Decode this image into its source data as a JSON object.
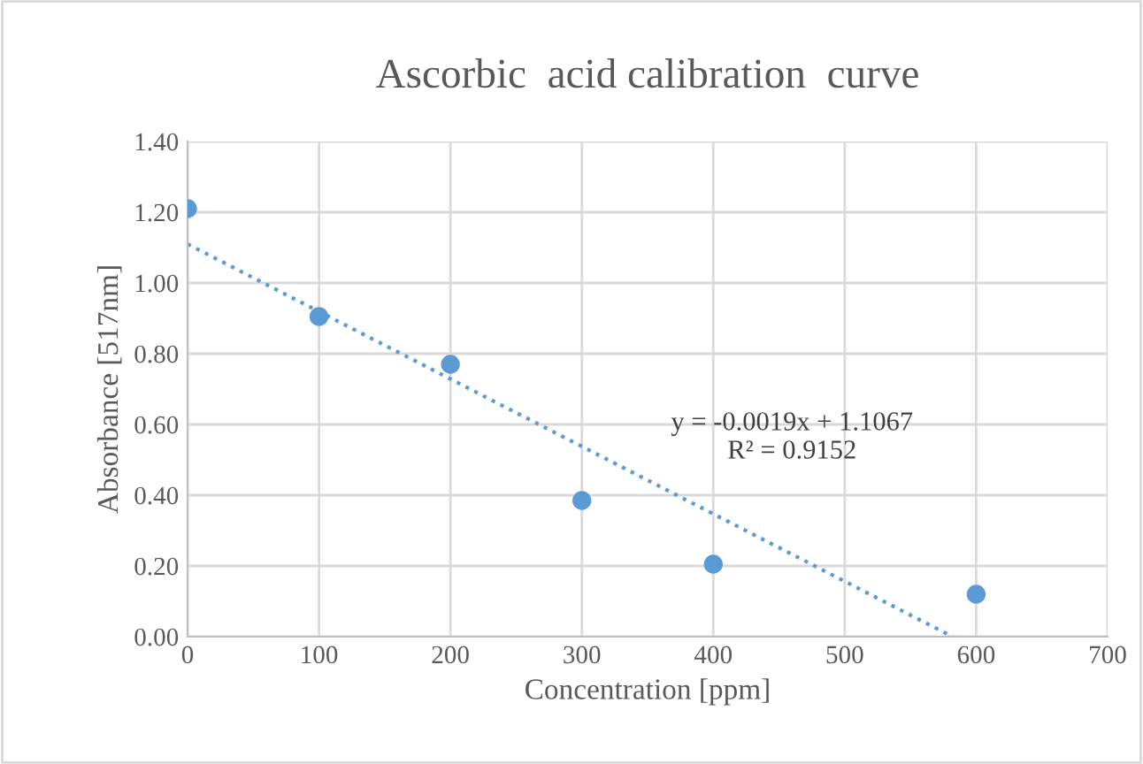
{
  "chart_data": {
    "type": "scatter",
    "title": "Ascorbic  acid calibration  curve",
    "xlabel": "Concentration [ppm]",
    "ylabel": "Absorbance [517nm]",
    "series": [
      {
        "color": "#5b9bd5",
        "x": [
          0,
          100,
          200,
          300,
          400,
          600
        ],
        "values": [
          1.21,
          0.905,
          0.77,
          0.385,
          0.205,
          0.12
        ],
        "marker": "circle"
      },
      {
        "type": "line",
        "color": "#5b9bd5",
        "x": [
          0,
          582
        ],
        "values": [
          1.11,
          0
        ],
        "line_style": "dotted",
        "marker": "none"
      }
    ],
    "annotations": [
      "y = -0.0019x + 1.1067",
      "R² = 0.9152"
    ],
    "xlim": [
      0,
      700
    ],
    "xticks": [
      0,
      100,
      200,
      300,
      400,
      500,
      600,
      700
    ],
    "ylim": [
      0,
      1.4
    ],
    "yticks": [
      {
        "value": 0,
        "label": "0.00"
      },
      {
        "value": 0.2,
        "label": "0.20"
      },
      {
        "value": 0.4,
        "label": "0.40"
      },
      {
        "value": 0.6,
        "label": "0.60"
      },
      {
        "value": 0.8,
        "label": "0.80"
      },
      {
        "value": 1.0,
        "label": "1.00"
      },
      {
        "value": 1.2,
        "label": "1.20"
      },
      {
        "value": 1.4,
        "label": "1.40"
      }
    ],
    "grid": true,
    "legend": false
  }
}
